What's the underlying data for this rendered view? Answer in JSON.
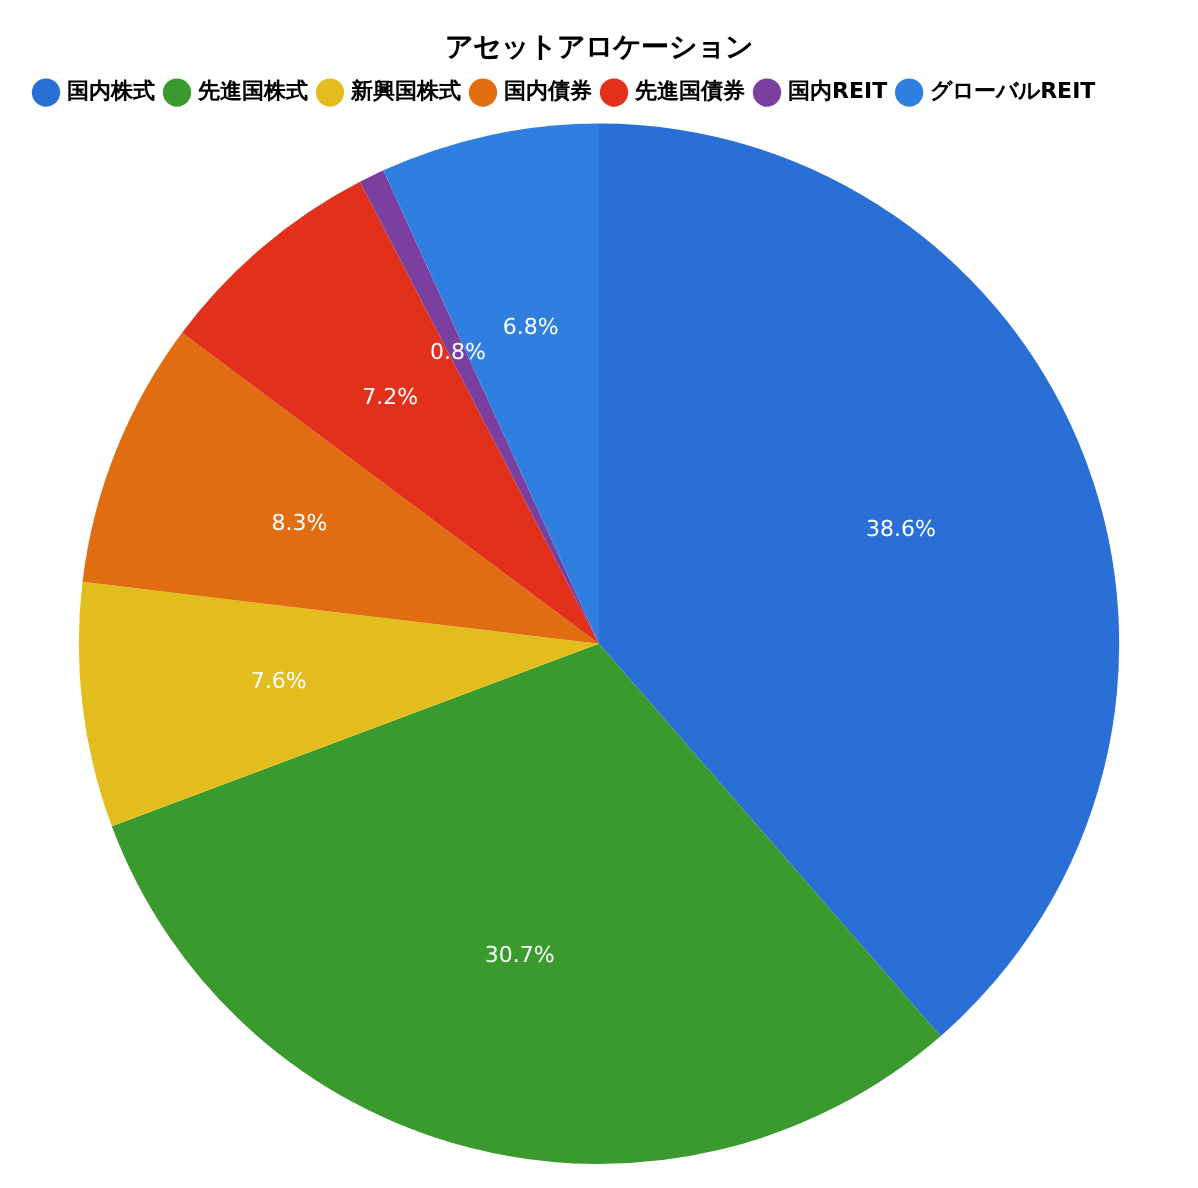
{
  "chart_data": {
    "type": "pie",
    "title": "アセットアロケーション",
    "categories": [
      "国内株式",
      "先進国株式",
      "新興国株式",
      "国内債券",
      "先進国債券",
      "国内REIT",
      "グローバルREIT"
    ],
    "values": [
      38.6,
      30.7,
      7.6,
      8.3,
      7.2,
      0.8,
      6.8
    ],
    "colors": [
      "#2a6fd6",
      "#3a9a2e",
      "#e3bd1e",
      "#e06d12",
      "#e2301a",
      "#7b3fa0",
      "#2f7fe0"
    ],
    "value_labels": [
      "38.6%",
      "30.7%",
      "7.6%",
      "8.3%",
      "7.2%",
      "0.8%",
      "6.8%"
    ],
    "legend": "top left"
  }
}
